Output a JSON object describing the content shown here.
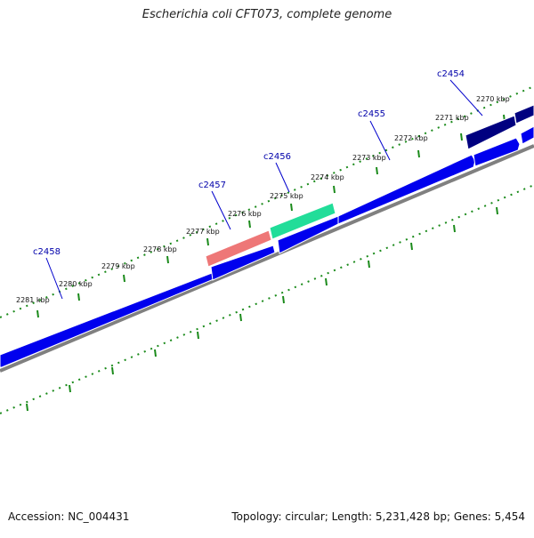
{
  "title": "Escherichia coli CFT073, complete genome",
  "footer": {
    "accession": "Accession: NC_004431",
    "summary": "Topology: circular; Length: 5,231,428 bp; Genes: 5,454"
  },
  "colors": {
    "forward_cds": "#0000ee",
    "gene_c2454": "#000080",
    "gene_c2455": "#0000ee",
    "gene_c2456": "#22dd99",
    "gene_c2457": "#ee7777",
    "gene_c2458": "#0000ee",
    "backbone": "#808080",
    "tick": "#1a8a1a",
    "gene_label": "#0000aa"
  },
  "ticks": {
    "unit": "kbp",
    "labels": [
      "2270 kbp",
      "2271 kbp",
      "2272 kbp",
      "2273 kbp",
      "2274 kbp",
      "2275 kbp",
      "2276 kbp",
      "2277 kbp",
      "2278 kbp",
      "2279 kbp",
      "2280 kbp",
      "2281 kbp"
    ]
  },
  "genes": [
    {
      "name": "c2454"
    },
    {
      "name": "c2455"
    },
    {
      "name": "c2456"
    },
    {
      "name": "c2457"
    },
    {
      "name": "c2458"
    }
  ]
}
